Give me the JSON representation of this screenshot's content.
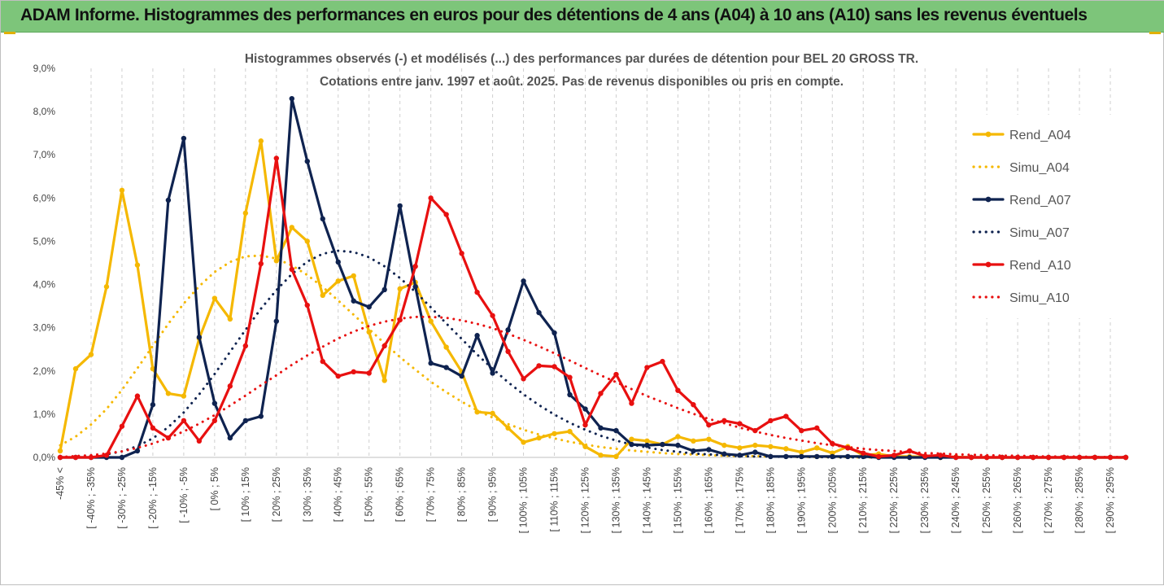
{
  "header": {
    "title": "ADAM Informe. Histogrammes des performances en euros pour des détentions de 4 ans (A04) à 10 ans (A10) sans les revenus éventuels",
    "background": "#7dc57a"
  },
  "chart_data": {
    "type": "line",
    "title": "Histogrammes observés (-) et modélisés (...) des performances par durées de détention pour BEL 20 GROSS TR.",
    "subtitle": "Cotations entre janv. 1997 et août. 2025. Pas de revenus disponibles ou pris en compte.",
    "ylim": [
      0,
      9
    ],
    "y_ticks": [
      "0,0%",
      "1,0%",
      "2,0%",
      "3,0%",
      "4,0%",
      "5,0%",
      "6,0%",
      "7,0%",
      "8,0%",
      "9,0%"
    ],
    "grid": "vertical dashed",
    "legend_position": "right",
    "x_tick_labels": [
      "-45% <",
      "[ -40% ; -35%",
      "[ -30% ; -25%",
      "[ -20% ; -15%",
      "[ -10% ; -5%",
      "[ 0% ; 5%",
      "[ 10% ; 15%",
      "[ 20% ; 25%",
      "[ 30% ; 35%",
      "[ 40% ; 45%",
      "[ 50% ; 55%",
      "[ 60% ; 65%",
      "[ 70% ; 75%",
      "[ 80% ; 85%",
      "[ 90% ; 95%",
      "[ 100% ; 105%",
      "[ 110% ; 115%",
      "[ 120% ; 125%",
      "[ 130% ; 135%",
      "[ 140% ; 145%",
      "[ 150% ; 155%",
      "[ 160% ; 165%",
      "[ 170% ; 175%",
      "[ 180% ; 185%",
      "[ 190% ; 195%",
      "[ 200% ; 205%",
      "[ 210% ; 215%",
      "[ 220% ; 225%",
      "[ 230% ; 235%",
      "[ 240% ; 245%",
      "[ 250% ; 255%",
      "[ 260% ; 265%",
      "[ 270% ; 275%",
      "[ 280% ; 285%",
      "[ 290% ; 295%"
    ],
    "x_bins": [
      "-45% <",
      "[ -45% ; -40%",
      "[ -40% ; -35%",
      "[ -35% ; -30%",
      "[ -30% ; -25%",
      "[ -25% ; -20%",
      "[ -20% ; -15%",
      "[ -15% ; -10%",
      "[ -10% ; -5%",
      "[ -5% ; 0%",
      "[ 0% ; 5%",
      "[ 5% ; 10%",
      "[ 10% ; 15%",
      "[ 15% ; 20%",
      "[ 20% ; 25%",
      "[ 25% ; 30%",
      "[ 30% ; 35%",
      "[ 35% ; 40%",
      "[ 40% ; 45%",
      "[ 45% ; 50%",
      "[ 50% ; 55%",
      "[ 55% ; 60%",
      "[ 60% ; 65%",
      "[ 65% ; 70%",
      "[ 70% ; 75%",
      "[ 75% ; 80%",
      "[ 80% ; 85%",
      "[ 85% ; 90%",
      "[ 90% ; 95%",
      "[ 95% ; 100%",
      "[ 100% ; 105%",
      "[ 105% ; 110%",
      "[ 110% ; 115%",
      "[ 115% ; 120%",
      "[ 120% ; 125%",
      "[ 125% ; 130%",
      "[ 130% ; 135%",
      "[ 135% ; 140%",
      "[ 140% ; 145%",
      "[ 145% ; 150%",
      "[ 150% ; 155%",
      "[ 155% ; 160%",
      "[ 160% ; 165%",
      "[ 165% ; 170%",
      "[ 170% ; 175%",
      "[ 175% ; 180%",
      "[ 180% ; 185%",
      "[ 185% ; 190%",
      "[ 190% ; 195%",
      "[ 195% ; 200%",
      "[ 200% ; 205%",
      "[ 205% ; 210%",
      "[ 210% ; 215%",
      "[ 215% ; 220%",
      "[ 220% ; 225%",
      "[ 225% ; 230%",
      "[ 230% ; 235%",
      "[ 235% ; 240%",
      "[ 240% ; 245%",
      "[ 245% ; 250%",
      "[ 250% ; 255%",
      "[ 255% ; 260%",
      "[ 260% ; 265%",
      "[ 265% ; 270%",
      "[ 270% ; 275%",
      "[ 275% ; 280%",
      "[ 280% ; 285%",
      "[ 285% ; 290%",
      "[ 290% ; 295%",
      "[ 295% ; 300%"
    ],
    "series": [
      {
        "name": "Rend_A04",
        "color": "#f5b800",
        "style": "solid",
        "markers": true,
        "values": [
          0.15,
          2.05,
          2.38,
          3.95,
          6.18,
          4.45,
          2.05,
          1.48,
          1.42,
          2.75,
          3.68,
          3.2,
          5.65,
          7.32,
          4.55,
          5.32,
          5.0,
          3.75,
          4.08,
          4.2,
          2.9,
          1.78,
          3.9,
          4.05,
          3.15,
          2.55,
          1.98,
          1.05,
          1.02,
          0.68,
          0.35,
          0.45,
          0.55,
          0.6,
          0.25,
          0.05,
          0.02,
          0.42,
          0.38,
          0.3,
          0.48,
          0.38,
          0.42,
          0.28,
          0.22,
          0.28,
          0.25,
          0.2,
          0.12,
          0.22,
          0.1,
          0.25,
          0.05,
          0.08,
          0.02,
          0.02,
          0.01,
          0.0,
          0.01,
          0.0,
          0.0,
          0.0,
          0.0,
          0.0,
          0.0,
          0.0,
          0.0,
          0.0,
          0.0,
          0.0
        ]
      },
      {
        "name": "Simu_A04",
        "color": "#f5b800",
        "style": "dotted",
        "markers": false,
        "values": [
          0.28,
          0.48,
          0.76,
          1.12,
          1.56,
          2.06,
          2.58,
          3.09,
          3.56,
          3.96,
          4.29,
          4.52,
          4.65,
          4.67,
          4.6,
          4.44,
          4.22,
          3.94,
          3.63,
          3.3,
          2.97,
          2.64,
          2.32,
          2.03,
          1.75,
          1.51,
          1.29,
          1.09,
          0.92,
          0.77,
          0.64,
          0.53,
          0.44,
          0.36,
          0.3,
          0.24,
          0.2,
          0.16,
          0.13,
          0.1,
          0.08,
          0.07,
          0.05,
          0.04,
          0.03,
          0.03,
          0.02,
          0.02,
          0.01,
          0.01,
          0.01,
          0.01,
          0.0,
          0.0,
          0.0,
          0.0,
          0.0,
          0.0,
          0.0,
          0.0,
          0.0,
          0.0,
          0.0,
          0.0,
          0.0,
          0.0,
          0.0,
          0.0,
          0.0,
          0.0
        ]
      },
      {
        "name": "Rend_A07",
        "color": "#0f2350",
        "style": "solid",
        "markers": true,
        "values": [
          0.0,
          0.0,
          0.0,
          0.0,
          0.0,
          0.15,
          1.22,
          5.95,
          7.38,
          2.78,
          1.25,
          0.45,
          0.85,
          0.95,
          3.15,
          8.3,
          6.85,
          5.52,
          4.52,
          3.62,
          3.48,
          3.88,
          5.82,
          3.95,
          2.18,
          2.08,
          1.88,
          2.82,
          1.95,
          2.95,
          4.08,
          3.35,
          2.88,
          1.45,
          1.12,
          0.68,
          0.62,
          0.3,
          0.28,
          0.3,
          0.28,
          0.15,
          0.18,
          0.08,
          0.05,
          0.12,
          0.02,
          0.02,
          0.02,
          0.02,
          0.02,
          0.02,
          0.02,
          0.0,
          0.0,
          0.0,
          0.0,
          0.0,
          0.0,
          0.0,
          0.0,
          0.0,
          0.0,
          0.0,
          0.0,
          0.0,
          0.0,
          0.0,
          0.0,
          0.0
        ]
      },
      {
        "name": "Simu_A07",
        "color": "#0f2350",
        "style": "dotted",
        "markers": false,
        "values": [
          0.0,
          0.01,
          0.03,
          0.07,
          0.14,
          0.26,
          0.44,
          0.7,
          1.04,
          1.46,
          1.93,
          2.44,
          2.95,
          3.44,
          3.87,
          4.24,
          4.53,
          4.71,
          4.78,
          4.75,
          4.63,
          4.42,
          4.15,
          3.83,
          3.47,
          3.1,
          2.74,
          2.38,
          2.05,
          1.74,
          1.46,
          1.21,
          0.99,
          0.8,
          0.64,
          0.5,
          0.39,
          0.3,
          0.23,
          0.17,
          0.13,
          0.09,
          0.07,
          0.05,
          0.03,
          0.02,
          0.02,
          0.01,
          0.01,
          0.01,
          0.0,
          0.0,
          0.0,
          0.0,
          0.0,
          0.0,
          0.0,
          0.0,
          0.0,
          0.0,
          0.0,
          0.0,
          0.0,
          0.0,
          0.0,
          0.0,
          0.0,
          0.0,
          0.0,
          0.0
        ]
      },
      {
        "name": "Rend_A10",
        "color": "#e81010",
        "style": "solid",
        "markers": true,
        "values": [
          0.0,
          0.0,
          0.0,
          0.05,
          0.72,
          1.42,
          0.68,
          0.45,
          0.85,
          0.38,
          0.85,
          1.65,
          2.58,
          4.48,
          6.92,
          4.35,
          3.52,
          2.22,
          1.88,
          1.98,
          1.95,
          2.58,
          3.18,
          4.42,
          6.0,
          5.62,
          4.72,
          3.82,
          3.28,
          2.45,
          1.82,
          2.12,
          2.1,
          1.85,
          0.75,
          1.48,
          1.92,
          1.25,
          2.08,
          2.22,
          1.55,
          1.22,
          0.75,
          0.85,
          0.78,
          0.62,
          0.85,
          0.95,
          0.62,
          0.68,
          0.32,
          0.22,
          0.1,
          0.02,
          0.05,
          0.15,
          0.03,
          0.05,
          0.0,
          0.0,
          0.0,
          0.0,
          0.0,
          0.0,
          0.0,
          0.0,
          0.0,
          0.0,
          0.0,
          0.0
        ]
      },
      {
        "name": "Simu_A10",
        "color": "#e81010",
        "style": "dotted",
        "markers": false,
        "values": [
          0.01,
          0.03,
          0.05,
          0.09,
          0.14,
          0.22,
          0.32,
          0.45,
          0.6,
          0.78,
          0.98,
          1.2,
          1.43,
          1.67,
          1.9,
          2.14,
          2.36,
          2.56,
          2.75,
          2.91,
          3.04,
          3.14,
          3.21,
          3.25,
          3.25,
          3.23,
          3.17,
          3.09,
          2.99,
          2.86,
          2.72,
          2.57,
          2.41,
          2.24,
          2.07,
          1.9,
          1.74,
          1.58,
          1.42,
          1.28,
          1.14,
          1.01,
          0.89,
          0.79,
          0.69,
          0.6,
          0.52,
          0.45,
          0.39,
          0.33,
          0.28,
          0.24,
          0.2,
          0.17,
          0.15,
          0.12,
          0.1,
          0.09,
          0.07,
          0.06,
          0.05,
          0.04,
          0.04,
          0.03,
          0.02,
          0.02,
          0.02,
          0.01,
          0.01,
          0.01
        ]
      }
    ]
  }
}
